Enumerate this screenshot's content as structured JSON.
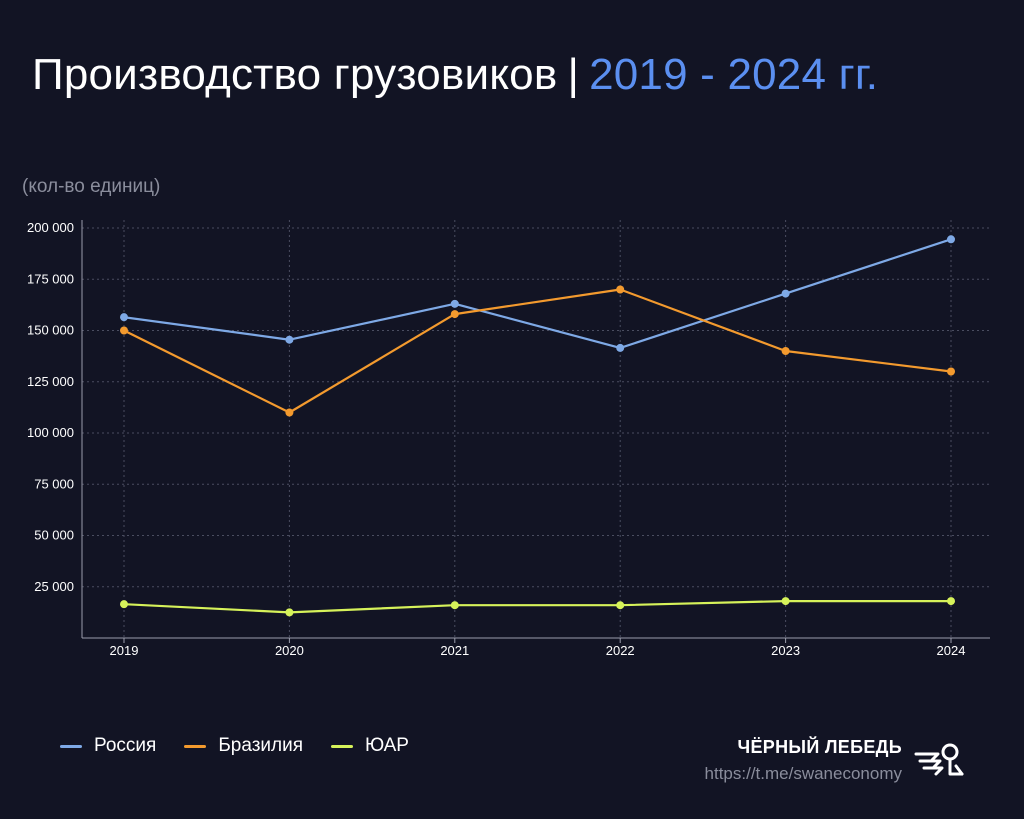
{
  "header": {
    "title_main": "Производство грузовиков",
    "title_sep": "|",
    "title_years": "2019 - 2024 гг."
  },
  "units_label": "(кол-во единиц)",
  "chart_data": {
    "type": "line",
    "x": [
      "2019",
      "2020",
      "2021",
      "2022",
      "2023",
      "2024"
    ],
    "ylim": [
      0,
      200000
    ],
    "y_ticks": [
      25000,
      50000,
      75000,
      100000,
      125000,
      150000,
      175000,
      200000
    ],
    "y_tick_labels": [
      "25 000",
      "50 000",
      "75 000",
      "100 000",
      "125 000",
      "150 000",
      "175 000",
      "200 000"
    ],
    "grid": true,
    "legend_position": "bottom-left",
    "series": [
      {
        "name": "Россия",
        "color": "#7ea9e6",
        "values": [
          156500,
          145500,
          163000,
          141500,
          168000,
          194500
        ]
      },
      {
        "name": "Бразилия",
        "color": "#f39a2e",
        "values": [
          150000,
          110000,
          158000,
          170000,
          140000,
          130000
        ]
      },
      {
        "name": "ЮАР",
        "color": "#d6f25a",
        "values": [
          16500,
          12500,
          16000,
          16000,
          18000,
          18000
        ]
      }
    ]
  },
  "brand": {
    "name": "ЧЁРНЫЙ ЛЕБЕДЬ",
    "link": "https://t.me/swaneconomy",
    "logo_icon": "swan-logo-icon"
  }
}
